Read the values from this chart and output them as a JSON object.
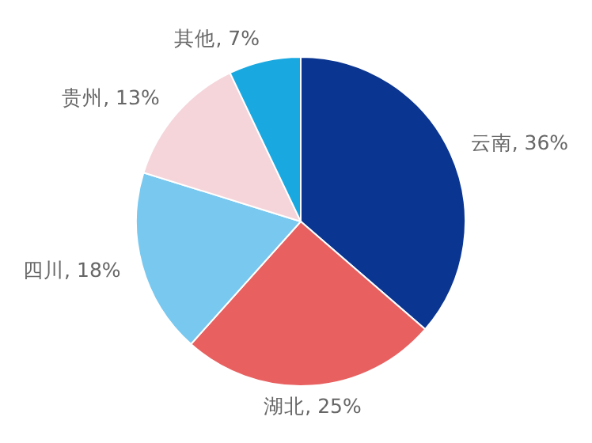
{
  "chart_data": {
    "type": "pie",
    "categories": [
      "云南",
      "湖北",
      "四川",
      "贵州",
      "其他"
    ],
    "values": [
      36,
      25,
      18,
      13,
      7
    ],
    "value_labels": [
      "36%",
      "25%",
      "18%",
      "13%",
      "7%"
    ],
    "colors": [
      "#0a3590",
      "#e86060",
      "#78c8f0",
      "#f5d5da",
      "#1aa8e0"
    ]
  }
}
